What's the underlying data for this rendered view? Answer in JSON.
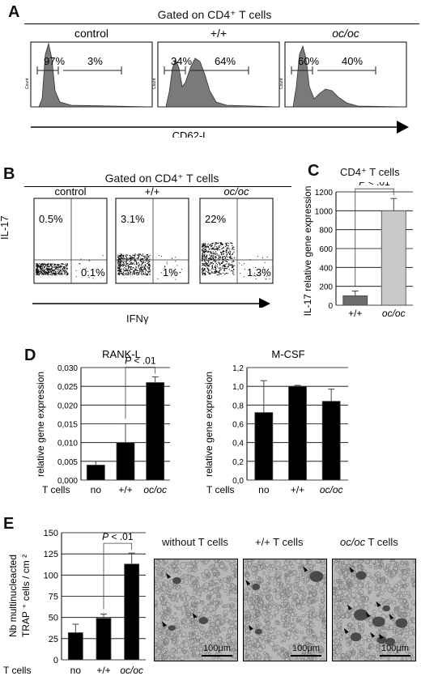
{
  "panelA": {
    "letter": "A",
    "gate": "Gated on CD4⁺ T cells",
    "axis": "CD62-L",
    "plots": [
      {
        "title": "control",
        "title_italic": false,
        "left_pct": "97%",
        "right_pct": "3%"
      },
      {
        "title": "+/+",
        "title_italic": false,
        "left_pct": "34%",
        "right_pct": "64%"
      },
      {
        "title": "oc/oc",
        "title_italic": true,
        "left_pct": "60%",
        "right_pct": "40%"
      }
    ],
    "y_label": "Count"
  },
  "panelB": {
    "letter": "B",
    "gate": "Gated on CD4⁺ T cells",
    "xlabel": "IFNγ",
    "ylabel": "IL-17",
    "plots": [
      {
        "title": "control",
        "title_italic": false,
        "upper_left": "0.5%",
        "lower_right": "0.1%"
      },
      {
        "title": "+/+",
        "title_italic": false,
        "upper_left": "3.1%",
        "lower_right": "1%"
      },
      {
        "title": "oc/oc",
        "title_italic": true,
        "upper_left": "22%",
        "lower_right": "1.3%"
      }
    ]
  },
  "panelC": {
    "letter": "C",
    "chart_data": {
      "type": "bar",
      "title": "CD4⁺ T cells",
      "ylabel": "IL-17 relative gene expression",
      "categories": [
        "+/+",
        "oc/oc"
      ],
      "values": [
        100,
        1000
      ],
      "errors": [
        50,
        130
      ],
      "ylim": [
        0,
        1200
      ],
      "yticks": [
        "0",
        "200",
        "400",
        "600",
        "800",
        "1000",
        "1200"
      ],
      "colors": [
        "#6b6b6b",
        "#c8c8c8"
      ],
      "annotation": "P < .01"
    }
  },
  "panelD": {
    "letter": "D",
    "row_label": "T cells",
    "ylabel": "relative gene expression",
    "chart_data": [
      {
        "type": "bar",
        "title": "RANK-L",
        "categories": [
          "no",
          "+/+",
          "oc/oc"
        ],
        "values": [
          0.004,
          0.01,
          0.026
        ],
        "errors": [
          0.001,
          0.005,
          0.0015
        ],
        "ylim": [
          0,
          0.03
        ],
        "yticks": [
          "0,000",
          "0,005",
          "0,010",
          "0,015",
          "0,020",
          "0,025",
          "0,030"
        ],
        "annotation": "P < .01"
      },
      {
        "type": "bar",
        "title": "M-CSF",
        "categories": [
          "no",
          "+/+",
          "oc/oc"
        ],
        "values": [
          0.72,
          1.0,
          0.84
        ],
        "errors": [
          0.34,
          0.01,
          0.13
        ],
        "ylim": [
          0,
          1.2
        ],
        "yticks": [
          "0,0",
          "0,2",
          "0,4",
          "0,6",
          "0,8",
          "1,0",
          "1,2"
        ]
      }
    ]
  },
  "panelE": {
    "letter": "E",
    "row_label": "T cells",
    "ylabel_line1": "Nb multinucleacted",
    "ylabel_line2": "TRAP ⁺ cells / cm ²",
    "chart_data": {
      "type": "bar",
      "categories": [
        "no",
        "+/+",
        "oc/oc"
      ],
      "values": [
        32,
        49,
        113
      ],
      "errors": [
        10,
        5,
        13
      ],
      "ylim": [
        0,
        150
      ],
      "yticks": [
        "0",
        "25",
        "50",
        "75",
        "100",
        "125",
        "150"
      ],
      "annotation": "P < .01"
    },
    "photos": [
      {
        "title": "without T cells",
        "italic_part": "",
        "scale": "100μm"
      },
      {
        "title": "+/+ T cells",
        "italic_part": "",
        "scale": "100μm"
      },
      {
        "title": " T cells",
        "italic_part": "oc/oc",
        "scale": "100μm"
      }
    ]
  },
  "colors": {
    "histogram_fill": "#7a7a7a",
    "bar_dark": "#6b6b6b",
    "bar_light": "#c8c8c8"
  }
}
